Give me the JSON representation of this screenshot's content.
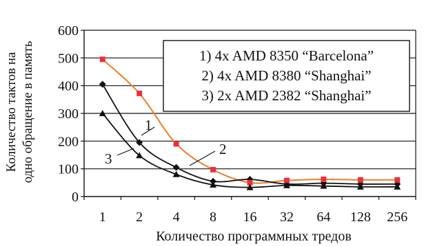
{
  "chart_data": {
    "type": "line",
    "categories": [
      "1",
      "2",
      "4",
      "8",
      "16",
      "32",
      "64",
      "128",
      "256"
    ],
    "xlabel": "Количество программных тредов",
    "ylabel_lines": [
      "Количество тактов на",
      "одно обращение в память"
    ],
    "ylim": [
      0,
      600
    ],
    "yticks": [
      0,
      100,
      200,
      300,
      400,
      500,
      600
    ],
    "grid": "horizontal",
    "legend_position": "top-right",
    "legend": [
      "1) 4x AMD 8350 “Barcelona”",
      "2) 4x AMD 8380 “Shanghai”",
      "3) 2x AMD 2382 “Shanghai”"
    ],
    "series": [
      {
        "key": "1",
        "color": "#111111",
        "values": [
          405,
          195,
          105,
          55,
          62,
          45,
          48,
          45,
          45
        ],
        "smooth": false
      },
      {
        "key": "2",
        "color": "#f07c24",
        "marker_color": "#e8323c",
        "values": [
          495,
          372,
          190,
          97,
          50,
          58,
          62,
          60,
          60
        ],
        "smooth": true
      },
      {
        "key": "3",
        "color": "#111111",
        "values": [
          300,
          148,
          80,
          42,
          33,
          40,
          38,
          35,
          35
        ],
        "smooth": false
      }
    ],
    "curve_labels": [
      "1",
      "2",
      "3"
    ]
  }
}
